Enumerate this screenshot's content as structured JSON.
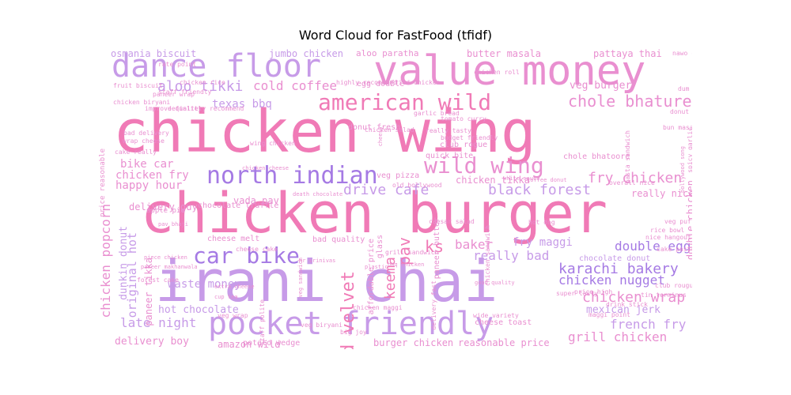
{
  "title": "Word Cloud for FastFood (tfidf)",
  "palette": [
    "#f07ab6",
    "#e98fd0",
    "#c79be8",
    "#d9a0ec",
    "#a57ae4",
    "#f59ad0",
    "#ee8ec0"
  ],
  "words": [
    {
      "text": "chicken wing",
      "c": 0
    },
    {
      "text": "chicken burger",
      "c": 0
    },
    {
      "text": "irani chai",
      "c": 2
    },
    {
      "text": "value money",
      "c": 1
    },
    {
      "text": "dance floor",
      "c": 2
    },
    {
      "text": "pocket friendly",
      "c": 2
    },
    {
      "text": "american wild",
      "c": 0
    },
    {
      "text": "north indian",
      "c": 4
    },
    {
      "text": "wild wing",
      "c": 1
    },
    {
      "text": "car bike",
      "c": 4
    },
    {
      "text": "chole bhature",
      "c": 1
    },
    {
      "text": "karachi bakery",
      "c": 4
    },
    {
      "text": "chicken wrap",
      "c": 1
    },
    {
      "text": "fry chicken",
      "c": 1
    },
    {
      "text": "black forest",
      "c": 2
    },
    {
      "text": "drive cafe",
      "c": 2
    },
    {
      "text": "aloo tikki",
      "c": 2
    },
    {
      "text": "chicken nugget",
      "c": 4
    },
    {
      "text": "double egg",
      "c": 4
    },
    {
      "text": "really bad",
      "c": 2
    },
    {
      "text": "grill chicken",
      "c": 1
    },
    {
      "text": "french fry",
      "c": 2
    },
    {
      "text": "late night",
      "c": 2
    },
    {
      "text": "cold coffee",
      "c": 1
    },
    {
      "text": "red velvet",
      "c": 0
    },
    {
      "text": "chicken popcorn",
      "c": 1
    },
    {
      "text": "original hot",
      "c": 2
    },
    {
      "text": "texas bbq",
      "c": 2
    },
    {
      "text": "veg burger",
      "c": 1
    },
    {
      "text": "osmania biscuit",
      "c": 2
    },
    {
      "text": "jumbo chicken",
      "c": 2
    },
    {
      "text": "aloo paratha",
      "c": 1
    },
    {
      "text": "butter masala",
      "c": 1
    },
    {
      "text": "pattaya thai",
      "c": 1
    },
    {
      "text": "bike car",
      "c": 1
    },
    {
      "text": "chicken fry",
      "c": 1
    },
    {
      "text": "happy hour",
      "c": 1
    },
    {
      "text": "waste money",
      "c": 2
    },
    {
      "text": "hot chocolate",
      "c": 2
    },
    {
      "text": "delivery boy",
      "c": 1
    },
    {
      "text": "amazon wild",
      "c": 1
    },
    {
      "text": "burger chicken",
      "c": 1
    },
    {
      "text": "reasonable price",
      "c": 1
    },
    {
      "text": "mexican jerk",
      "c": 2
    },
    {
      "text": "baker",
      "c": 1
    },
    {
      "text": "ks",
      "c": 0
    },
    {
      "text": "fry maggi",
      "c": 2
    },
    {
      "text": "pav",
      "c": 0
    },
    {
      "text": "keema",
      "c": 0
    },
    {
      "text": "dunkin donut",
      "c": 2
    },
    {
      "text": "paneer tikka",
      "c": 1
    },
    {
      "text": "double chicken",
      "c": 1
    },
    {
      "text": "chicken tikka",
      "c": 1
    },
    {
      "text": "vada pav",
      "c": 1
    },
    {
      "text": "veg pizza",
      "c": 1
    },
    {
      "text": "delivery guy",
      "c": 1
    },
    {
      "text": "chocolate truffle",
      "c": 1
    },
    {
      "text": "cheese melt",
      "c": 1
    },
    {
      "text": "bad quality",
      "c": 1
    },
    {
      "text": "really nice",
      "c": 1
    },
    {
      "text": "chocolate donut",
      "c": 2
    },
    {
      "text": "cheese toast",
      "c": 1
    },
    {
      "text": "potato wedge",
      "c": 1
    },
    {
      "text": "egg double",
      "c": 1
    },
    {
      "text": "club rogue",
      "c": 1
    },
    {
      "text": "quick bite",
      "c": 1
    },
    {
      "text": "donut fresh",
      "c": 1
    },
    {
      "text": "chole bhatoore",
      "c": 1
    },
    {
      "text": "price reasonable",
      "c": 1
    },
    {
      "text": "highly recommend",
      "c": 1
    },
    {
      "text": "staff friendly",
      "c": 1
    },
    {
      "text": "fried chicken",
      "c": 1
    },
    {
      "text": "apple pie",
      "c": 1
    },
    {
      "text": "paneer butter",
      "c": 1
    },
    {
      "text": "chicken roll",
      "c": 1
    },
    {
      "text": "nawo cake",
      "c": 1
    },
    {
      "text": "rate point",
      "c": 1
    },
    {
      "text": "definitely recommend",
      "c": 1
    },
    {
      "text": "improve quality",
      "c": 1
    },
    {
      "text": "chicken biryani",
      "c": 1
    },
    {
      "text": "fruit biscuit",
      "c": 1
    },
    {
      "text": "paneer wrap",
      "c": 1
    },
    {
      "text": "chicken rice",
      "c": 1
    },
    {
      "text": "dum biryani",
      "c": 1
    },
    {
      "text": "donut burger",
      "c": 1
    },
    {
      "text": "bun masala",
      "c": 1
    },
    {
      "text": "spicy garlic",
      "c": 1
    },
    {
      "text": "bollywood song",
      "c": 1
    },
    {
      "text": "pasta sandwich",
      "c": 1
    },
    {
      "text": "tomato curry",
      "c": 1
    },
    {
      "text": "budget friendly",
      "c": 1
    },
    {
      "text": "really tasty",
      "c": 1
    },
    {
      "text": "garlic bread",
      "c": 1
    },
    {
      "text": "chicken salad",
      "c": 1
    },
    {
      "text": "wing chicken",
      "c": 1
    },
    {
      "text": "bad delivery",
      "c": 1
    },
    {
      "text": "wrap cheese",
      "c": 1
    },
    {
      "text": "cake really",
      "c": 1
    },
    {
      "text": "white sauce",
      "c": 1
    },
    {
      "text": "coffee donut",
      "c": 1
    },
    {
      "text": "overall nice",
      "c": 1
    },
    {
      "text": "old bollywood",
      "c": 1
    },
    {
      "text": "caesar salad",
      "c": 1
    },
    {
      "text": "veg puff",
      "c": 1
    },
    {
      "text": "rice bowl",
      "c": 1
    },
    {
      "text": "nice hangout",
      "c": 1
    },
    {
      "text": "cake pastry",
      "c": 1
    },
    {
      "text": "hot dog",
      "c": 1
    },
    {
      "text": "price high",
      "c": 1
    },
    {
      "text": "club rougue",
      "c": 1
    },
    {
      "text": "tin terminus",
      "c": 1
    },
    {
      "text": "drink stick",
      "c": 1
    },
    {
      "text": "super tasty",
      "c": 1
    },
    {
      "text": "maggi point",
      "c": 1
    },
    {
      "text": "good quality",
      "c": 1
    },
    {
      "text": "wide variety",
      "c": 1
    },
    {
      "text": "chicken maggi",
      "c": 1
    },
    {
      "text": "veg biryani",
      "c": 1
    },
    {
      "text": "big joy",
      "c": 1
    },
    {
      "text": "staff polite",
      "c": 1
    },
    {
      "text": "veg wrap",
      "c": 1
    },
    {
      "text": "cup tea",
      "c": 1
    },
    {
      "text": "extra cheese",
      "c": 1
    },
    {
      "text": "forest cake",
      "c": 1
    },
    {
      "text": "paneer makhanwala",
      "c": 1
    },
    {
      "text": "piece chicken",
      "c": 1
    },
    {
      "text": "pav bhaji",
      "c": 1
    },
    {
      "text": "cheese cake",
      "c": 1
    },
    {
      "text": "grill sandwich",
      "c": 1
    },
    {
      "text": "bbq chicken",
      "c": 1
    },
    {
      "text": "plastic",
      "c": 1
    },
    {
      "text": "glass",
      "c": 1
    },
    {
      "text": "affordable price",
      "c": 1
    },
    {
      "text": "delivery fast",
      "c": 1
    },
    {
      "text": "chicken sandwich",
      "c": 1
    },
    {
      "text": "veg sandwich",
      "c": 1
    },
    {
      "text": "mr srinivas",
      "c": 1
    },
    {
      "text": "death chocolate",
      "c": 1
    },
    {
      "text": "chicken cheese",
      "c": 1
    },
    {
      "text": "cheesy",
      "c": 1
    }
  ]
}
